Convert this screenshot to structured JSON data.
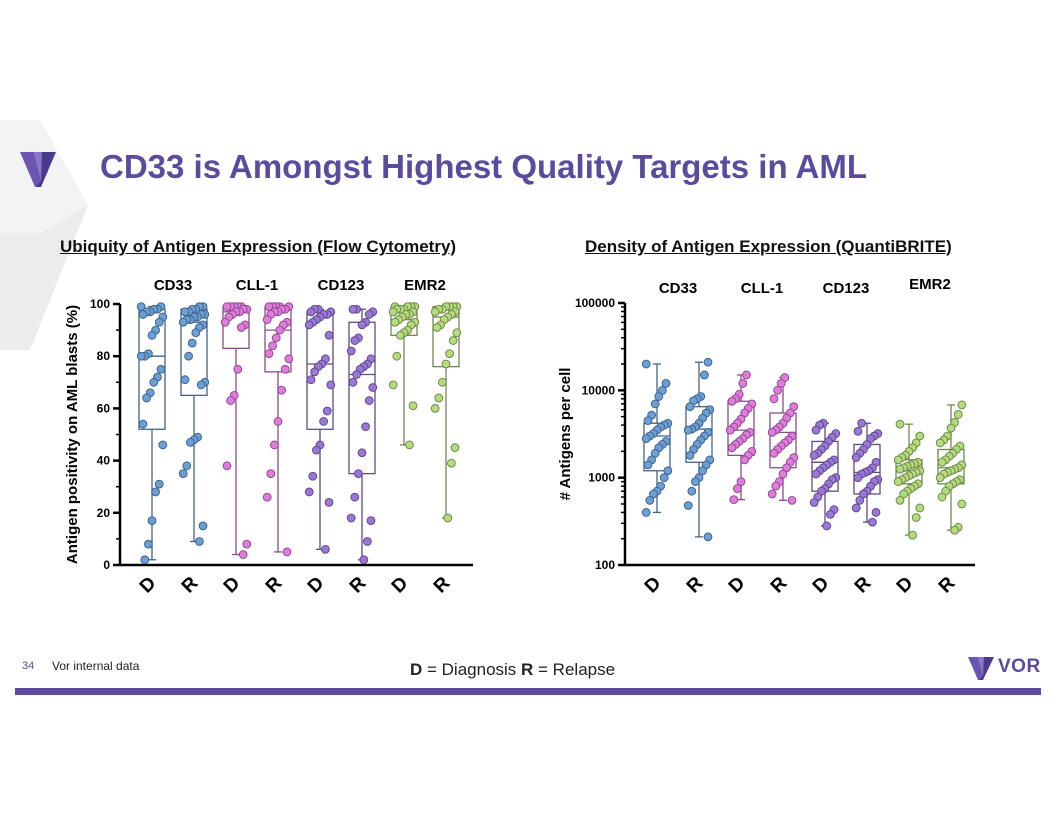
{
  "slide": {
    "title": "CD33 is Amongst Highest Quality Targets in AML",
    "page_number": "34",
    "source_note": "Vor internal data",
    "legend": {
      "d_key": "D",
      "d_text": " = Diagnosis ",
      "r_key": "R",
      "r_text": " = Relapse"
    },
    "brand": "VOR",
    "colors": {
      "accent": "#5b4a9e",
      "cd33": "#6a9fd8",
      "cll1": "#e27be0",
      "cd123": "#9a77d8",
      "emr2": "#b5dc7c"
    }
  },
  "chart_data": [
    {
      "type": "box-scatter",
      "title": "Ubiquity of Antigen Expression (Flow Cytometry)",
      "ylabel": "Antigen positivity on AML blasts (%)",
      "ylim": [
        0,
        100
      ],
      "yticks": [
        "0",
        "20",
        "40",
        "60",
        "80",
        "100"
      ],
      "yscale": "linear",
      "groups": [
        "CD33",
        "CLL-1",
        "CD123",
        "EMR2"
      ],
      "categories": [
        "D",
        "R",
        "D",
        "R",
        "D",
        "R",
        "D",
        "R"
      ],
      "series": [
        {
          "group": "CD33",
          "category": "D",
          "color": "#6a9fd8",
          "box": {
            "q1": 52,
            "median": 80,
            "q3": 98
          },
          "values": [
            99,
            99,
            98,
            98,
            97,
            97,
            96,
            95,
            93,
            90,
            88,
            81,
            80,
            80,
            75,
            72,
            70,
            66,
            64,
            54,
            46,
            31,
            28,
            17,
            8,
            2
          ]
        },
        {
          "group": "CD33",
          "category": "R",
          "color": "#6a9fd8",
          "box": {
            "q1": 65,
            "median": 93,
            "q3": 98
          },
          "values": [
            99,
            99,
            98,
            98,
            97,
            97,
            96,
            96,
            95,
            95,
            94,
            94,
            93,
            92,
            91,
            89,
            85,
            80,
            71,
            70,
            69,
            49,
            48,
            47,
            38,
            35,
            15,
            9
          ]
        },
        {
          "group": "CLL-1",
          "category": "D",
          "color": "#e27be0",
          "box": {
            "q1": 83,
            "median": 97,
            "q3": 99
          },
          "values": [
            99,
            99,
            99,
            99,
            99,
            98,
            98,
            97,
            97,
            96,
            95,
            93,
            92,
            91,
            75,
            65,
            63,
            38,
            8,
            4
          ]
        },
        {
          "group": "CLL-1",
          "category": "R",
          "color": "#e27be0",
          "box": {
            "q1": 74,
            "median": 90,
            "q3": 99
          },
          "values": [
            99,
            99,
            99,
            99,
            99,
            98,
            98,
            97,
            97,
            96,
            94,
            93,
            92,
            90,
            87,
            84,
            81,
            79,
            75,
            67,
            55,
            46,
            35,
            26,
            5
          ]
        },
        {
          "group": "CD123",
          "category": "D",
          "color": "#9a77d8",
          "box": {
            "q1": 52,
            "median": 77,
            "q3": 97
          },
          "values": [
            98,
            98,
            97,
            97,
            96,
            96,
            95,
            94,
            93,
            92,
            88,
            79,
            77,
            76,
            74,
            71,
            69,
            59,
            55,
            46,
            44,
            34,
            28,
            24,
            6
          ]
        },
        {
          "group": "CD123",
          "category": "R",
          "color": "#9a77d8",
          "box": {
            "q1": 35,
            "median": 73,
            "q3": 93
          },
          "values": [
            98,
            98,
            97,
            96,
            93,
            92,
            87,
            86,
            82,
            79,
            77,
            76,
            75,
            73,
            70,
            68,
            63,
            53,
            43,
            35,
            26,
            18,
            17,
            9,
            2
          ]
        },
        {
          "group": "EMR2",
          "category": "D",
          "color": "#b5dc7c",
          "box": {
            "q1": 88,
            "median": 94,
            "q3": 99
          },
          "values": [
            99,
            99,
            99,
            99,
            98,
            98,
            98,
            97,
            97,
            96,
            96,
            95,
            94,
            93,
            93,
            92,
            90,
            89,
            88,
            80,
            69,
            61,
            46
          ]
        },
        {
          "group": "EMR2",
          "category": "R",
          "color": "#b5dc7c",
          "box": {
            "q1": 76,
            "median": 95,
            "q3": 99
          },
          "values": [
            99,
            99,
            99,
            99,
            98,
            98,
            97,
            97,
            96,
            95,
            94,
            92,
            91,
            89,
            86,
            81,
            77,
            70,
            64,
            60,
            45,
            39,
            18
          ]
        }
      ]
    },
    {
      "type": "box-scatter",
      "title": "Density of Antigen Expression (QuantiBRITE)",
      "ylabel": "# Antigens per cell",
      "ylim": [
        100,
        100000
      ],
      "yticks": [
        "100",
        "1000",
        "10000",
        "100000"
      ],
      "yscale": "log",
      "groups": [
        "CD33",
        "CLL-1",
        "CD123",
        "EMR2"
      ],
      "categories": [
        "D",
        "R",
        "D",
        "R",
        "D",
        "R",
        "D",
        "R"
      ],
      "series": [
        {
          "group": "CD33",
          "category": "D",
          "color": "#6a9fd8",
          "box": {
            "q1": 1200,
            "median": 3000,
            "q3": 4200
          },
          "values": [
            20000,
            12000,
            10000,
            8500,
            7000,
            5200,
            4500,
            4200,
            4000,
            3800,
            3500,
            3200,
            3000,
            2800,
            2600,
            2400,
            2200,
            1900,
            1600,
            1400,
            1200,
            1000,
            800,
            700,
            650,
            550,
            400
          ]
        },
        {
          "group": "CD33",
          "category": "R",
          "color": "#6a9fd8",
          "box": {
            "q1": 1500,
            "median": 3600,
            "q3": 6500
          },
          "values": [
            21000,
            15000,
            8500,
            8000,
            7600,
            6500,
            6000,
            5500,
            4800,
            4200,
            3800,
            3600,
            3500,
            3300,
            3000,
            2700,
            2400,
            2100,
            1800,
            1600,
            1400,
            1200,
            1000,
            900,
            700,
            480,
            210
          ]
        },
        {
          "group": "CLL-1",
          "category": "D",
          "color": "#e27be0",
          "box": {
            "q1": 1800,
            "median": 3500,
            "q3": 7500
          },
          "values": [
            15000,
            12000,
            9000,
            8000,
            7500,
            7000,
            6200,
            5500,
            4700,
            4200,
            3800,
            3500,
            3300,
            3100,
            2800,
            2600,
            2400,
            2200,
            2000,
            1800,
            1600,
            900,
            750,
            560
          ]
        },
        {
          "group": "CLL-1",
          "category": "R",
          "color": "#e27be0",
          "box": {
            "q1": 1300,
            "median": 3300,
            "q3": 5500
          },
          "values": [
            14000,
            12000,
            10000,
            8000,
            6500,
            5500,
            4800,
            4200,
            3800,
            3500,
            3300,
            3000,
            2700,
            2500,
            2300,
            2100,
            1900,
            1700,
            1500,
            1300,
            1100,
            900,
            800,
            650,
            550
          ]
        },
        {
          "group": "CD123",
          "category": "D",
          "color": "#9a77d8",
          "box": {
            "q1": 700,
            "median": 1500,
            "q3": 2600
          },
          "values": [
            4200,
            4000,
            3500,
            3200,
            2900,
            2600,
            2300,
            2100,
            1900,
            1800,
            1600,
            1500,
            1400,
            1300,
            1200,
            1100,
            1000,
            950,
            850,
            750,
            700,
            600,
            520,
            430,
            380,
            280
          ]
        },
        {
          "group": "CD123",
          "category": "R",
          "color": "#9a77d8",
          "box": {
            "q1": 650,
            "median": 1150,
            "q3": 2400
          },
          "values": [
            4200,
            3400,
            3200,
            3000,
            2800,
            2400,
            2100,
            1900,
            1700,
            1500,
            1300,
            1200,
            1150,
            1100,
            1000,
            950,
            900,
            800,
            700,
            650,
            550,
            450,
            400,
            310
          ]
        },
        {
          "group": "EMR2",
          "category": "D",
          "color": "#b5dc7c",
          "box": {
            "q1": 850,
            "median": 1200,
            "q3": 1600
          },
          "values": [
            4100,
            3000,
            2500,
            2200,
            2000,
            1800,
            1700,
            1600,
            1500,
            1450,
            1400,
            1350,
            1300,
            1250,
            1200,
            1150,
            1100,
            1050,
            1000,
            950,
            900,
            850,
            800,
            750,
            700,
            650,
            550,
            450,
            350,
            220
          ]
        },
        {
          "group": "EMR2",
          "category": "R",
          "color": "#b5dc7c",
          "box": {
            "q1": 850,
            "median": 1300,
            "q3": 2100
          },
          "values": [
            6800,
            5300,
            4300,
            3700,
            3000,
            2700,
            2500,
            2300,
            2100,
            1900,
            1750,
            1600,
            1500,
            1400,
            1300,
            1250,
            1200,
            1150,
            1100,
            1000,
            950,
            900,
            850,
            800,
            700,
            600,
            500,
            270,
            250
          ]
        }
      ]
    }
  ]
}
